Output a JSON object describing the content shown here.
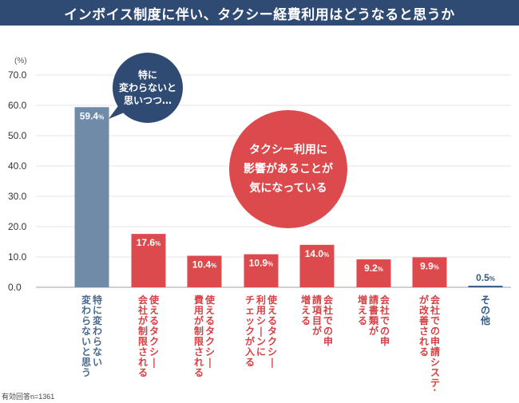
{
  "title": "インボイス制度に伴い、タクシー経費利用はどうなると思うか",
  "note": "有効回答n=1361",
  "chart_data": {
    "type": "bar",
    "unit_label": "(%)",
    "ylim": [
      0,
      70
    ],
    "yticks": [
      "0.0",
      "10.0",
      "20.0",
      "30.0",
      "40.0",
      "50.0",
      "60.0",
      "70.0"
    ],
    "categories": [
      "特に変わらない\n変わらないと思う",
      "使えるタクシー\n会社が制限される",
      "使えるタクシー\n費用が制限される",
      "使えるタクシー\n利用シーンに\nチェックが入る",
      "会社での申\n請項目が\n増える",
      "会社での申\n請書類が\n増える",
      "会社での申請システム\nが改善される",
      "その他"
    ],
    "values": [
      59.4,
      17.6,
      10.4,
      10.9,
      14.0,
      9.2,
      9.9,
      0.5
    ],
    "labels": [
      "59.4%",
      "17.6%",
      "10.4%",
      "10.9%",
      "14.0%",
      "9.2%",
      "9.9%",
      "0.5%"
    ],
    "colors": {
      "no_change": "#6f8ba8",
      "impact": "#dc4a4d",
      "other": "#2f5b8a",
      "banner": "#2f4a73"
    },
    "callouts": {
      "no_change": [
        "特に",
        "変わらないと",
        "思いつつ…"
      ],
      "impact": [
        "タクシー利用に",
        "影響があることが",
        "気になっている"
      ]
    }
  }
}
